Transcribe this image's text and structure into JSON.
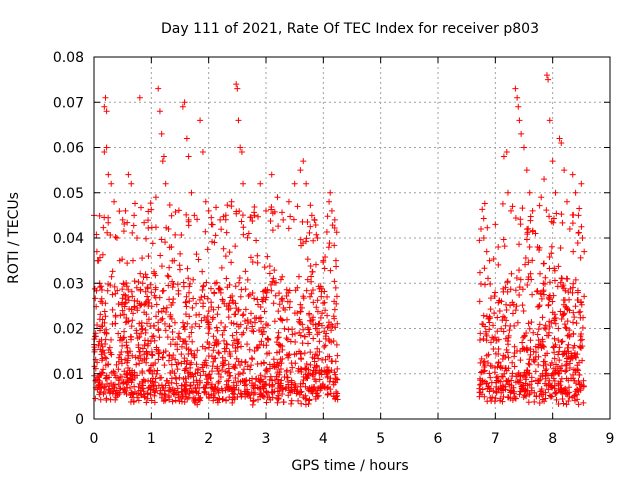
{
  "chart_data": {
    "type": "scatter",
    "title": "Day 111 of 2021, Rate Of TEC Index for receiver p803",
    "xlabel": "GPS time / hours",
    "ylabel": "ROTI / TECUs",
    "xlim": [
      0,
      9
    ],
    "ylim": [
      0,
      0.08
    ],
    "x_ticks": [
      0,
      1,
      2,
      3,
      4,
      5,
      6,
      7,
      8,
      9
    ],
    "x_tick_labels": [
      "0",
      "1",
      "2",
      "3",
      "4",
      "5",
      "6",
      "7",
      "8",
      "9"
    ],
    "y_ticks": [
      0,
      0.01,
      0.02,
      0.03,
      0.04,
      0.05,
      0.06,
      0.07,
      0.08
    ],
    "y_tick_labels": [
      "0",
      "0.01",
      "0.02",
      "0.03",
      "0.04",
      "0.05",
      "0.06",
      "0.07",
      "0.08"
    ],
    "grid": true,
    "marker": "+",
    "series": [
      {
        "name": "ROTI",
        "color": "#ff0000",
        "segments": [
          {
            "x_start": 0.0,
            "x_end": 4.25,
            "typical_min": 0.005,
            "typical_max": 0.03
          },
          {
            "x_start": 6.72,
            "x_end": 8.55,
            "typical_min": 0.005,
            "typical_max": 0.03
          }
        ],
        "points": [
          [
            0.0,
            0.045
          ],
          [
            0.05,
            0.037
          ],
          [
            0.08,
            0.035
          ],
          [
            0.1,
            0.03
          ],
          [
            0.12,
            0.026
          ],
          [
            0.15,
            0.022
          ],
          [
            0.18,
            0.069
          ],
          [
            0.2,
            0.071
          ],
          [
            0.22,
            0.068
          ],
          [
            0.18,
            0.059
          ],
          [
            0.22,
            0.06
          ],
          [
            0.25,
            0.054
          ],
          [
            0.3,
            0.052
          ],
          [
            0.35,
            0.048
          ],
          [
            0.4,
            0.04
          ],
          [
            0.45,
            0.035
          ],
          [
            0.5,
            0.044
          ],
          [
            0.55,
            0.046
          ],
          [
            0.6,
            0.054
          ],
          [
            0.65,
            0.052
          ],
          [
            0.7,
            0.045
          ],
          [
            0.75,
            0.04
          ],
          [
            0.8,
            0.071
          ],
          [
            0.85,
            0.03
          ],
          [
            0.9,
            0.032
          ],
          [
            0.95,
            0.036
          ],
          [
            1.0,
            0.028
          ],
          [
            1.08,
            0.049
          ],
          [
            1.12,
            0.073
          ],
          [
            1.15,
            0.068
          ],
          [
            1.18,
            0.063
          ],
          [
            1.2,
            0.057
          ],
          [
            1.22,
            0.058
          ],
          [
            1.25,
            0.052
          ],
          [
            1.3,
            0.042
          ],
          [
            1.35,
            0.038
          ],
          [
            1.4,
            0.035
          ],
          [
            1.5,
            0.033
          ],
          [
            1.55,
            0.069
          ],
          [
            1.58,
            0.07
          ],
          [
            1.62,
            0.062
          ],
          [
            1.65,
            0.058
          ],
          [
            1.7,
            0.05
          ],
          [
            1.75,
            0.045
          ],
          [
            1.85,
            0.066
          ],
          [
            1.9,
            0.059
          ],
          [
            1.95,
            0.048
          ],
          [
            2.0,
            0.046
          ],
          [
            2.05,
            0.043
          ],
          [
            2.1,
            0.039
          ],
          [
            2.2,
            0.044
          ],
          [
            2.3,
            0.036
          ],
          [
            2.4,
            0.048
          ],
          [
            2.48,
            0.074
          ],
          [
            2.5,
            0.073
          ],
          [
            2.52,
            0.066
          ],
          [
            2.55,
            0.06
          ],
          [
            2.58,
            0.059
          ],
          [
            2.6,
            0.052
          ],
          [
            2.7,
            0.041
          ],
          [
            2.8,
            0.045
          ],
          [
            2.9,
            0.052
          ],
          [
            3.0,
            0.046
          ],
          [
            3.1,
            0.054
          ],
          [
            3.2,
            0.049
          ],
          [
            3.3,
            0.044
          ],
          [
            3.4,
            0.048
          ],
          [
            3.5,
            0.052
          ],
          [
            3.55,
            0.047
          ],
          [
            3.6,
            0.055
          ],
          [
            3.65,
            0.057
          ],
          [
            3.7,
            0.052
          ],
          [
            3.8,
            0.045
          ],
          [
            3.9,
            0.04
          ],
          [
            4.0,
            0.035
          ],
          [
            4.1,
            0.048
          ],
          [
            4.12,
            0.05
          ],
          [
            4.15,
            0.046
          ],
          [
            4.2,
            0.044
          ],
          [
            4.22,
            0.035
          ],
          [
            6.75,
            0.042
          ],
          [
            6.8,
            0.04
          ],
          [
            6.85,
            0.037
          ],
          [
            6.9,
            0.035
          ],
          [
            7.0,
            0.043
          ],
          [
            7.05,
            0.038
          ],
          [
            7.15,
            0.058
          ],
          [
            7.2,
            0.059
          ],
          [
            7.22,
            0.05
          ],
          [
            7.3,
            0.047
          ],
          [
            7.35,
            0.073
          ],
          [
            7.38,
            0.071
          ],
          [
            7.4,
            0.069
          ],
          [
            7.42,
            0.066
          ],
          [
            7.45,
            0.063
          ],
          [
            7.5,
            0.06
          ],
          [
            7.55,
            0.055
          ],
          [
            7.6,
            0.05
          ],
          [
            7.65,
            0.046
          ],
          [
            7.7,
            0.041
          ],
          [
            7.8,
            0.049
          ],
          [
            7.85,
            0.053
          ],
          [
            7.9,
            0.076
          ],
          [
            7.92,
            0.075
          ],
          [
            7.95,
            0.066
          ],
          [
            8.0,
            0.057
          ],
          [
            8.05,
            0.05
          ],
          [
            8.12,
            0.062
          ],
          [
            8.15,
            0.061
          ],
          [
            8.2,
            0.055
          ],
          [
            8.25,
            0.048
          ],
          [
            8.3,
            0.042
          ],
          [
            8.35,
            0.054
          ],
          [
            8.4,
            0.05
          ],
          [
            8.45,
            0.045
          ],
          [
            8.5,
            0.052
          ],
          [
            8.52,
            0.04
          ],
          [
            8.55,
            0.037
          ]
        ]
      }
    ]
  }
}
